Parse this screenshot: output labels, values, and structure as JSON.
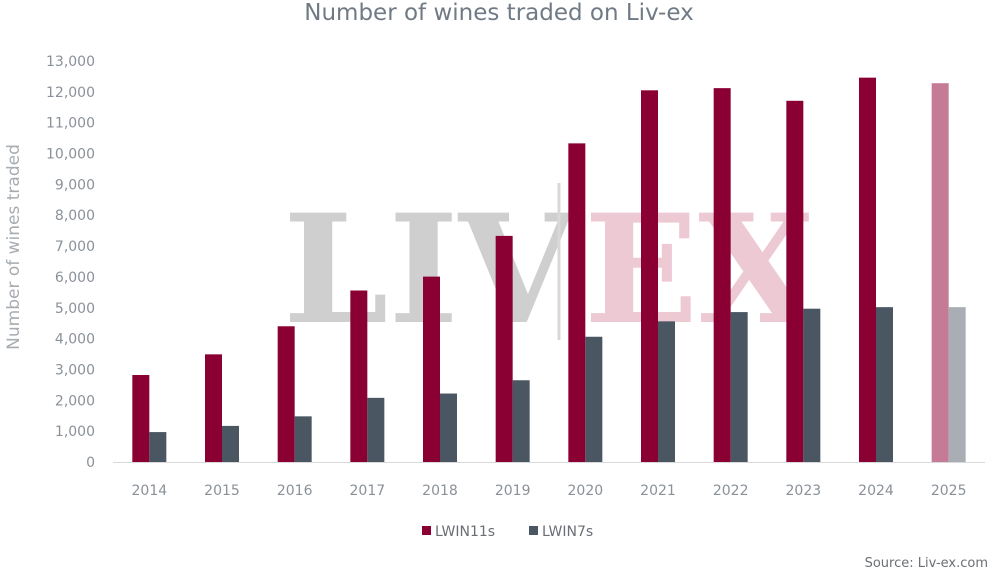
{
  "chart_data": {
    "type": "bar",
    "title": "Number of wines traded on Liv-ex",
    "ylabel": "Number of wines traded",
    "xlabel": "",
    "ylim": [
      0,
      13000
    ],
    "yticks": [
      0,
      1000,
      2000,
      3000,
      4000,
      5000,
      6000,
      7000,
      8000,
      9000,
      10000,
      11000,
      12000,
      13000
    ],
    "ytick_labels": [
      "0",
      "1,000",
      "2,000",
      "3,000",
      "4,000",
      "5,000",
      "6,000",
      "7,000",
      "8,000",
      "9,000",
      "10,000",
      "11,000",
      "12,000",
      "13,000"
    ],
    "categories": [
      "2014",
      "2015",
      "2016",
      "2017",
      "2018",
      "2019",
      "2020",
      "2021",
      "2022",
      "2023",
      "2024",
      "2025"
    ],
    "series": [
      {
        "name": "LWIN11s",
        "color": "#8a0033",
        "faded_color": "#c57a96",
        "values": [
          2820,
          3490,
          4400,
          5560,
          6010,
          7330,
          10330,
          12050,
          12120,
          11710,
          12460,
          12280
        ]
      },
      {
        "name": "LWIN7s",
        "color": "#4a5662",
        "faded_color": "#a8aeb3",
        "values": [
          970,
          1170,
          1480,
          2080,
          2220,
          2650,
          4060,
          4560,
          4860,
          4970,
          5020,
          5020
        ]
      }
    ],
    "faded_categories": [
      "2025"
    ],
    "grid": false,
    "legend": "bottom-center",
    "watermark": {
      "left": "LIV",
      "right": "EX",
      "left_color": "#cfcfcf",
      "right_color": "#ecc9d3"
    },
    "source": "Source: Liv-ex.com"
  }
}
